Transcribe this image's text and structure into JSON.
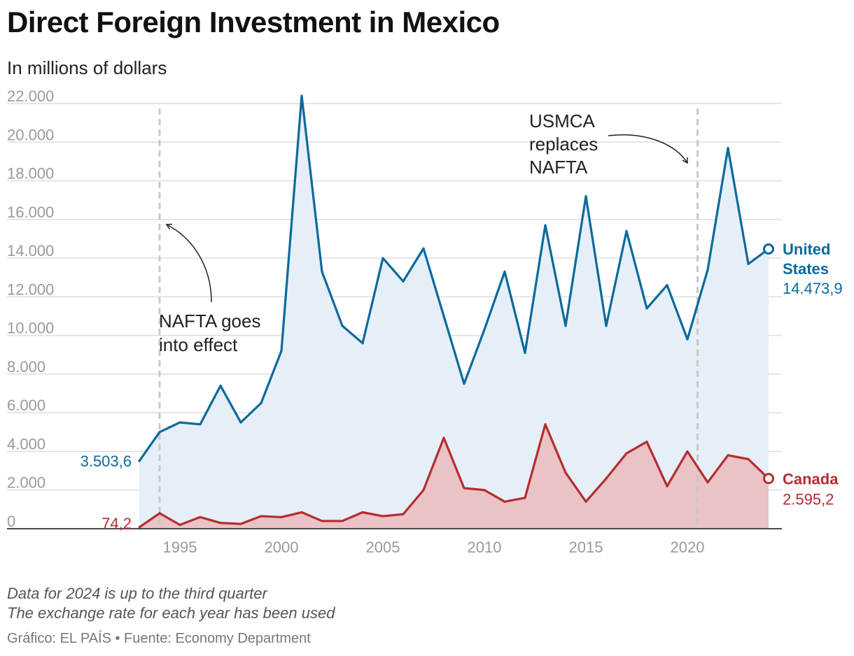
{
  "title": "Direct Foreign Investment in Mexico",
  "subtitle": "In millions of dollars",
  "notes": [
    "Data for 2024 is up to the third quarter",
    "The exchange rate for each year has been used"
  ],
  "credit": "Gráfico: EL PAÍS • Fuente: Economy Department",
  "chart_data": {
    "type": "area",
    "title": "Direct Foreign Investment in Mexico",
    "subtitle": "In millions of dollars",
    "x": [
      1993,
      1994,
      1995,
      1996,
      1997,
      1998,
      1999,
      2000,
      2001,
      2002,
      2003,
      2004,
      2005,
      2006,
      2007,
      2008,
      2009,
      2010,
      2011,
      2012,
      2013,
      2014,
      2015,
      2016,
      2017,
      2018,
      2019,
      2020,
      2021,
      2022,
      2023,
      2024
    ],
    "xlim": [
      1993,
      2024
    ],
    "ylim": [
      0,
      22000
    ],
    "x_ticks": [
      1995,
      2000,
      2005,
      2010,
      2015,
      2020
    ],
    "x_tick_labels": [
      "1995",
      "2000",
      "2005",
      "2010",
      "2015",
      "2020"
    ],
    "y_ticks": [
      0,
      2000,
      4000,
      6000,
      8000,
      10000,
      12000,
      14000,
      16000,
      18000,
      20000,
      22000
    ],
    "y_tick_labels": [
      "0",
      "2.000",
      "4.000",
      "6.000",
      "8.000",
      "10.000",
      "12.000",
      "14.000",
      "16.000",
      "18.000",
      "20.000",
      "22.000"
    ],
    "grid": true,
    "series": [
      {
        "name": "United States",
        "label_lines": [
          "United",
          "States"
        ],
        "color": "#0a6a9c",
        "fill": "#e6eff8",
        "values": [
          3503.6,
          5000,
          5500,
          5400,
          7400,
          5500,
          6500,
          9200,
          22400,
          13300,
          10500,
          9600,
          14000,
          12800,
          14500,
          11000,
          7500,
          10300,
          13300,
          9100,
          15700,
          10500,
          17200,
          10500,
          15400,
          11400,
          12600,
          9800,
          13400,
          19700,
          13700,
          14473.9
        ],
        "first_label": "3.503,6",
        "last_label": "14.473,9"
      },
      {
        "name": "Canada",
        "label_lines": [
          "Canada"
        ],
        "color": "#b52d2f",
        "fill": "#e9c3c6",
        "values": [
          74.2,
          800,
          200,
          600,
          300,
          250,
          650,
          600,
          850,
          400,
          400,
          850,
          650,
          750,
          2000,
          4700,
          2100,
          2000,
          1400,
          1600,
          5400,
          2900,
          1400,
          2600,
          3900,
          4500,
          2200,
          4000,
          2400,
          3800,
          3600,
          2595.2
        ],
        "first_label": "74,2",
        "last_label": "2.595,2"
      }
    ],
    "annotations": [
      {
        "year": 1994,
        "text_lines": [
          "NAFTA goes",
          "into effect"
        ]
      },
      {
        "year": 2020.5,
        "text_lines": [
          "USMCA",
          "replaces",
          "NAFTA"
        ]
      }
    ]
  }
}
